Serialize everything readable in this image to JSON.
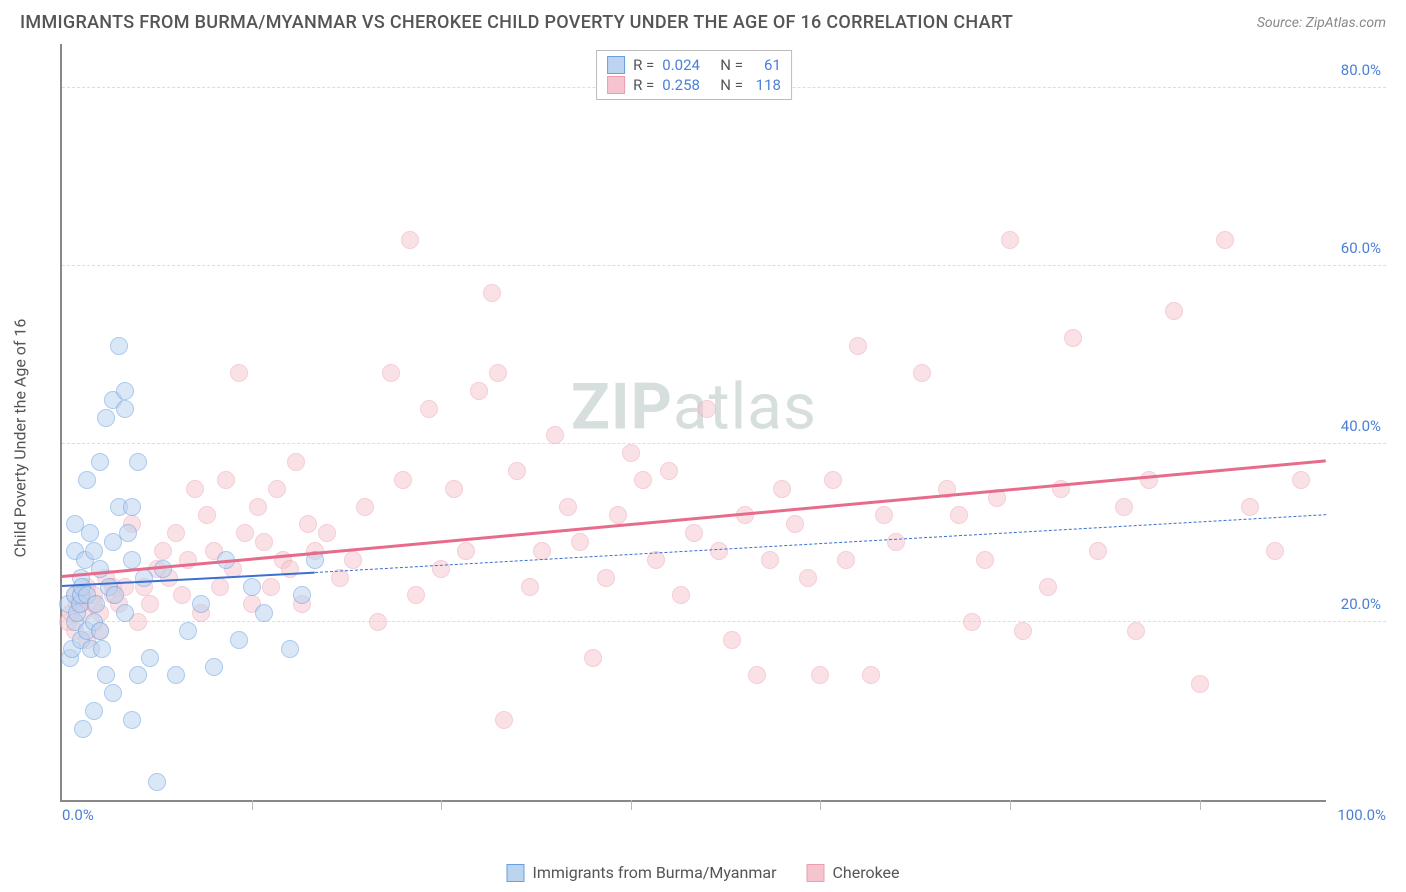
{
  "title": "IMMIGRANTS FROM BURMA/MYANMAR VS CHEROKEE CHILD POVERTY UNDER THE AGE OF 16 CORRELATION CHART",
  "source": "Source: ZipAtlas.com",
  "ylabel": "Child Poverty Under the Age of 16",
  "watermark_bold": "ZIP",
  "watermark_rest": "atlas",
  "chart": {
    "type": "scatter",
    "xlim": [
      0,
      100
    ],
    "ylim": [
      0,
      85
    ],
    "yticks": [
      20,
      40,
      60,
      80
    ],
    "ytick_labels": [
      "20.0%",
      "40.0%",
      "60.0%",
      "80.0%"
    ],
    "xticks_minor": [
      15,
      30,
      45,
      60,
      75,
      90
    ],
    "xtick_start": "0.0%",
    "xtick_end": "100.0%",
    "grid_color": "#dddddd",
    "marker_radius": 9,
    "marker_stroke_width": 1.5,
    "series_a": {
      "label": "Immigrants from Burma/Myanmar",
      "fill": "#bcd4f0",
      "stroke": "#6a9fe0",
      "fill_opacity": 0.55,
      "R": "0.024",
      "N": "61",
      "trend": {
        "x1": 0,
        "y1": 24,
        "x2": 20,
        "y2": 25.5,
        "ext_x2": 100,
        "ext_y2": 32,
        "color": "#3b6fd1",
        "width": 2.5,
        "dash": "6,5"
      },
      "points": [
        [
          0.5,
          22
        ],
        [
          0.6,
          16
        ],
        [
          0.8,
          17
        ],
        [
          1,
          31
        ],
        [
          1,
          23
        ],
        [
          1,
          20
        ],
        [
          1,
          28
        ],
        [
          1.2,
          21
        ],
        [
          1.4,
          22
        ],
        [
          1.5,
          23
        ],
        [
          1.5,
          18
        ],
        [
          1.5,
          25
        ],
        [
          1.6,
          24
        ],
        [
          1.7,
          8
        ],
        [
          1.8,
          27
        ],
        [
          2,
          23
        ],
        [
          2,
          19
        ],
        [
          2,
          36
        ],
        [
          2.2,
          30
        ],
        [
          2.3,
          17
        ],
        [
          2.5,
          28
        ],
        [
          2.5,
          20
        ],
        [
          2.5,
          10
        ],
        [
          2.7,
          22
        ],
        [
          3,
          19
        ],
        [
          3,
          26
        ],
        [
          3,
          38
        ],
        [
          3.2,
          17
        ],
        [
          3.5,
          43
        ],
        [
          3.5,
          14
        ],
        [
          3.7,
          24
        ],
        [
          4,
          29
        ],
        [
          4,
          45
        ],
        [
          4,
          12
        ],
        [
          4.2,
          23
        ],
        [
          4.5,
          33
        ],
        [
          4.5,
          51
        ],
        [
          5,
          44
        ],
        [
          5,
          21
        ],
        [
          5,
          46
        ],
        [
          5.2,
          30
        ],
        [
          5.5,
          33
        ],
        [
          5.5,
          9
        ],
        [
          5.5,
          27
        ],
        [
          6,
          38
        ],
        [
          6,
          14
        ],
        [
          6.5,
          25
        ],
        [
          7,
          16
        ],
        [
          7.5,
          2
        ],
        [
          8,
          26
        ],
        [
          9,
          14
        ],
        [
          10,
          19
        ],
        [
          11,
          22
        ],
        [
          12,
          15
        ],
        [
          13,
          27
        ],
        [
          14,
          18
        ],
        [
          15,
          24
        ],
        [
          16,
          21
        ],
        [
          18,
          17
        ],
        [
          19,
          23
        ],
        [
          20,
          27
        ]
      ]
    },
    "series_b": {
      "label": "Cherokee",
      "fill": "#f6c4ce",
      "stroke": "#ea9fb0",
      "fill_opacity": 0.5,
      "R": "0.258",
      "N": "118",
      "trend": {
        "x1": 0,
        "y1": 25,
        "x2": 100,
        "y2": 38,
        "color": "#e76b8b",
        "width": 3
      },
      "points": [
        [
          0.5,
          20
        ],
        [
          0.7,
          21
        ],
        [
          1,
          23
        ],
        [
          1,
          19
        ],
        [
          1.2,
          22
        ],
        [
          1.5,
          22
        ],
        [
          1.5,
          23
        ],
        [
          1.7,
          21
        ],
        [
          2,
          24
        ],
        [
          2,
          18
        ],
        [
          2.5,
          22
        ],
        [
          2.5,
          23
        ],
        [
          3,
          21
        ],
        [
          3,
          19
        ],
        [
          3.5,
          25
        ],
        [
          4,
          24
        ],
        [
          4,
          23
        ],
        [
          4.5,
          22
        ],
        [
          5,
          24
        ],
        [
          5.5,
          31
        ],
        [
          6,
          20
        ],
        [
          6.5,
          24
        ],
        [
          7,
          22
        ],
        [
          7.5,
          26
        ],
        [
          8,
          28
        ],
        [
          8.5,
          25
        ],
        [
          9,
          30
        ],
        [
          9.5,
          23
        ],
        [
          10,
          27
        ],
        [
          10.5,
          35
        ],
        [
          11,
          21
        ],
        [
          11.5,
          32
        ],
        [
          12,
          28
        ],
        [
          12.5,
          24
        ],
        [
          13,
          36
        ],
        [
          13.5,
          26
        ],
        [
          14,
          48
        ],
        [
          14.5,
          30
        ],
        [
          15,
          22
        ],
        [
          15.5,
          33
        ],
        [
          16,
          29
        ],
        [
          16.5,
          24
        ],
        [
          17,
          35
        ],
        [
          17.5,
          27
        ],
        [
          18,
          26
        ],
        [
          18.5,
          38
        ],
        [
          19,
          22
        ],
        [
          19.5,
          31
        ],
        [
          20,
          28
        ],
        [
          21,
          30
        ],
        [
          22,
          25
        ],
        [
          23,
          27
        ],
        [
          24,
          33
        ],
        [
          25,
          20
        ],
        [
          26,
          48
        ],
        [
          27,
          36
        ],
        [
          27.5,
          63
        ],
        [
          28,
          23
        ],
        [
          29,
          44
        ],
        [
          30,
          26
        ],
        [
          31,
          35
        ],
        [
          32,
          28
        ],
        [
          33,
          46
        ],
        [
          34,
          57
        ],
        [
          34.5,
          48
        ],
        [
          35,
          9
        ],
        [
          36,
          37
        ],
        [
          37,
          24
        ],
        [
          38,
          28
        ],
        [
          39,
          41
        ],
        [
          40,
          33
        ],
        [
          41,
          29
        ],
        [
          42,
          16
        ],
        [
          43,
          25
        ],
        [
          44,
          32
        ],
        [
          45,
          39
        ],
        [
          46,
          36
        ],
        [
          47,
          27
        ],
        [
          48,
          37
        ],
        [
          49,
          23
        ],
        [
          50,
          30
        ],
        [
          51,
          44
        ],
        [
          52,
          28
        ],
        [
          53,
          18
        ],
        [
          54,
          32
        ],
        [
          55,
          14
        ],
        [
          56,
          27
        ],
        [
          57,
          35
        ],
        [
          58,
          31
        ],
        [
          59,
          25
        ],
        [
          60,
          14
        ],
        [
          61,
          36
        ],
        [
          62,
          27
        ],
        [
          63,
          51
        ],
        [
          64,
          14
        ],
        [
          65,
          32
        ],
        [
          66,
          29
        ],
        [
          68,
          48
        ],
        [
          70,
          35
        ],
        [
          71,
          32
        ],
        [
          72,
          20
        ],
        [
          73,
          27
        ],
        [
          74,
          34
        ],
        [
          75,
          63
        ],
        [
          76,
          19
        ],
        [
          78,
          24
        ],
        [
          79,
          35
        ],
        [
          80,
          52
        ],
        [
          82,
          28
        ],
        [
          84,
          33
        ],
        [
          85,
          19
        ],
        [
          86,
          36
        ],
        [
          88,
          55
        ],
        [
          90,
          13
        ],
        [
          92,
          63
        ],
        [
          94,
          33
        ],
        [
          96,
          28
        ],
        [
          98,
          36
        ]
      ]
    }
  },
  "legend_top": {
    "r_label": "R =",
    "n_label": "N ="
  }
}
